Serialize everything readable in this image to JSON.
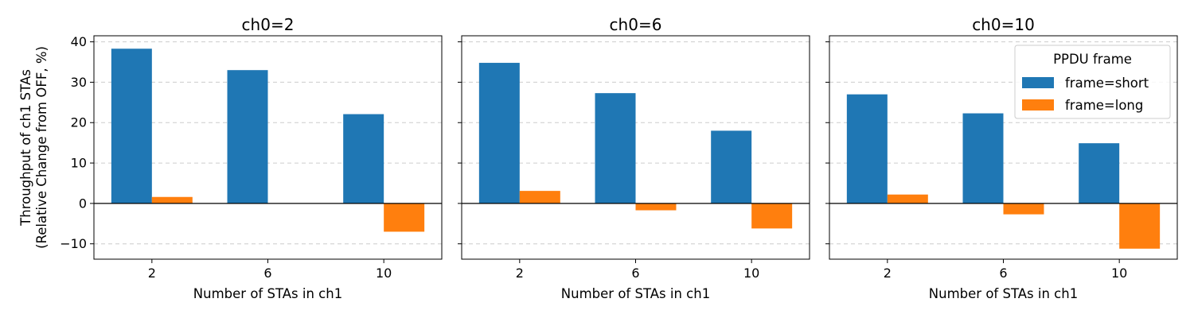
{
  "chart_data": [
    {
      "type": "bar",
      "title": "ch0=2",
      "categories": [
        "2",
        "6",
        "10"
      ],
      "series": [
        {
          "name": "frame=short",
          "values": [
            38.3,
            33.0,
            22.1
          ]
        },
        {
          "name": "frame=long",
          "values": [
            1.6,
            0.0,
            -7.0
          ]
        }
      ],
      "xlabel": "Number of STAs in ch1",
      "ylabel_lines": [
        "Throughput of ch1 STAs",
        "(Relative Change from OFF, %)"
      ],
      "ylim": [
        -13.8,
        41.5
      ],
      "yticks": [
        -10,
        0,
        10,
        20,
        30,
        40
      ],
      "grid": "y-dashed",
      "zero_line": true
    },
    {
      "type": "bar",
      "title": "ch0=6",
      "categories": [
        "2",
        "6",
        "10"
      ],
      "series": [
        {
          "name": "frame=short",
          "values": [
            34.8,
            27.3,
            18.0
          ]
        },
        {
          "name": "frame=long",
          "values": [
            3.1,
            -1.7,
            -6.2
          ]
        }
      ],
      "xlabel": "Number of STAs in ch1",
      "ylim": [
        -13.8,
        41.5
      ],
      "yticks": [
        -10,
        0,
        10,
        20,
        30,
        40
      ],
      "grid": "y-dashed",
      "zero_line": true
    },
    {
      "type": "bar",
      "title": "ch0=10",
      "categories": [
        "2",
        "6",
        "10"
      ],
      "series": [
        {
          "name": "frame=short",
          "values": [
            27.0,
            22.3,
            14.9
          ]
        },
        {
          "name": "frame=long",
          "values": [
            2.2,
            -2.7,
            -11.2
          ]
        }
      ],
      "xlabel": "Number of STAs in ch1",
      "ylim": [
        -13.8,
        41.5
      ],
      "yticks": [
        -10,
        0,
        10,
        20,
        30,
        40
      ],
      "grid": "y-dashed",
      "zero_line": true,
      "legend": {
        "title": "PPDU frame",
        "placement": "top-right",
        "entries": [
          "frame=short",
          "frame=long"
        ]
      }
    }
  ],
  "colors": {
    "frame=short": "#1f77b4",
    "frame=long": "#ff7f0e",
    "grid": "#cccccc",
    "axis": "#000000"
  }
}
